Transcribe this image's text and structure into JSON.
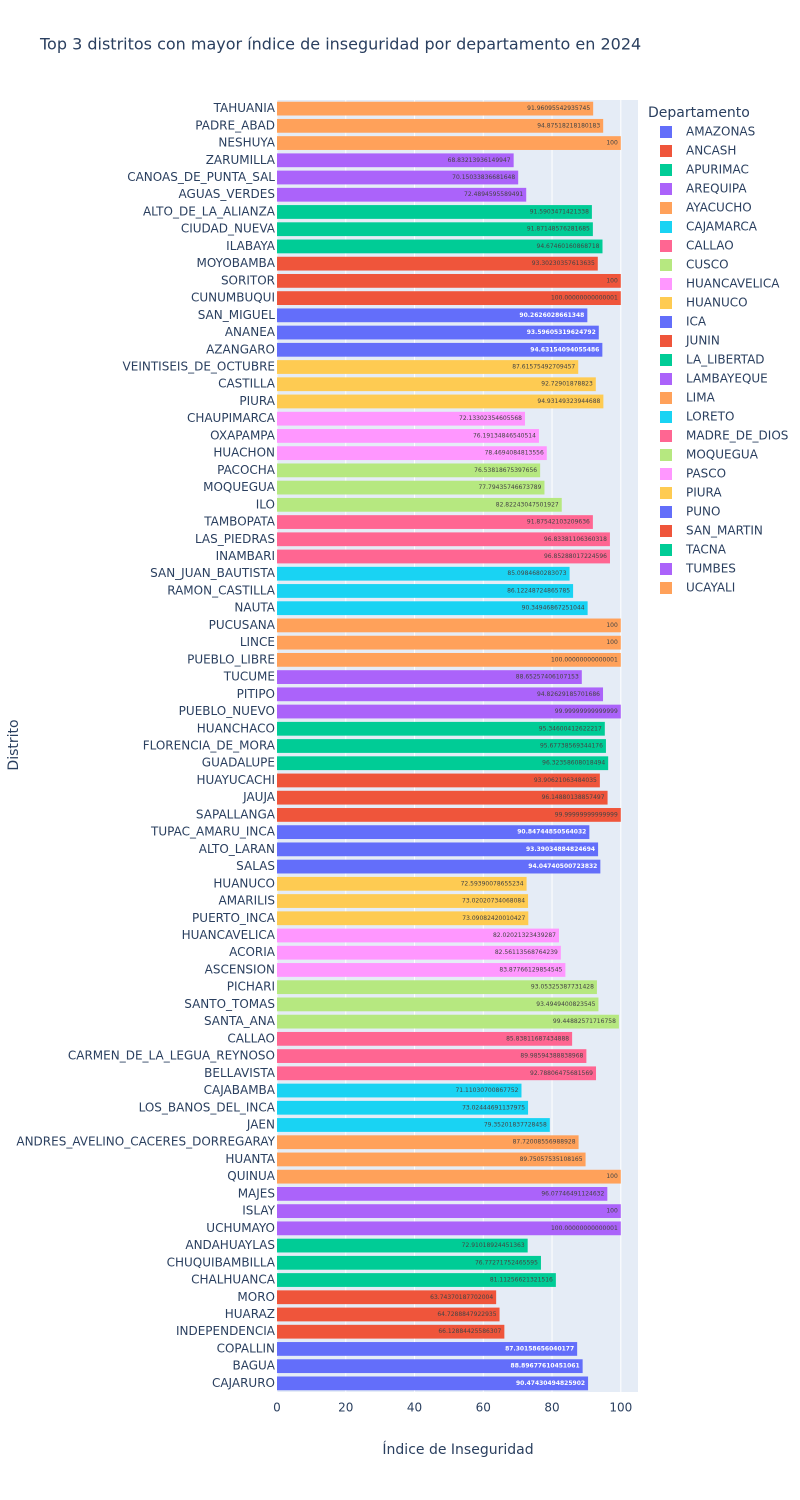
{
  "chart_data": {
    "type": "bar",
    "orientation": "horizontal",
    "title": "Top 3 distritos con mayor índice de inseguridad por departamento en 2024",
    "x_label": "Índice de Inseguridad",
    "y_label": "Distrito",
    "legend_title": "Departamento",
    "legend_position": "right",
    "grid": true,
    "xlim": [
      0,
      105
    ],
    "xticks": [
      0,
      20,
      40,
      60,
      80,
      100
    ],
    "series": [
      {
        "name": "AMAZONAS",
        "color": "#636EFA",
        "categories": [
          "COPALLIN",
          "BAGUA",
          "CAJARURO"
        ],
        "values": [
          87.30158656040177,
          88.89677610451061,
          90.47430494825902
        ]
      },
      {
        "name": "ANCASH",
        "color": "#EF553B",
        "categories": [
          "MORO",
          "HUARAZ",
          "INDEPENDENCIA"
        ],
        "values": [
          63.74370187702004,
          64.7288847922935,
          66.12884425586307
        ]
      },
      {
        "name": "APURIMAC",
        "color": "#00CC96",
        "categories": [
          "ANDAHUAYLAS",
          "CHUQUIBAMBILLA",
          "CHALHUANCA"
        ],
        "values": [
          72.91018924451363,
          76.77271752465595,
          81.11256621321516
        ]
      },
      {
        "name": "AREQUIPA",
        "color": "#AB63FA",
        "categories": [
          "MAJES",
          "ISLAY",
          "UCHUMAYO"
        ],
        "values": [
          96.07746491124632,
          100,
          100.00000000000001
        ]
      },
      {
        "name": "AYACUCHO",
        "color": "#FFA15A",
        "categories": [
          "ANDRES_AVELINO_CACERES_DORREGARAY",
          "HUANTA",
          "QUINUA"
        ],
        "values": [
          87.72008556988928,
          89.75057535108165,
          100
        ]
      },
      {
        "name": "CAJAMARCA",
        "color": "#19D3F3",
        "categories": [
          "CAJABAMBA",
          "LOS_BANOS_DEL_INCA",
          "JAEN"
        ],
        "values": [
          71.11030700867752,
          73.02444691137975,
          79.35201837728458
        ]
      },
      {
        "name": "CALLAO",
        "color": "#FF6692",
        "categories": [
          "CALLAO",
          "CARMEN_DE_LA_LEGUA_REYNOSO",
          "BELLAVISTA"
        ],
        "values": [
          85.83811687434888,
          89.98594388838968,
          92.78806475681569
        ]
      },
      {
        "name": "CUSCO",
        "color": "#B6E880",
        "categories": [
          "PICHARI",
          "SANTO_TOMAS",
          "SANTA_ANA"
        ],
        "values": [
          93.05325387731428,
          93.4949400823545,
          99.44882571716758
        ]
      },
      {
        "name": "HUANCAVELICA",
        "color": "#FF97FF",
        "categories": [
          "HUANCAVELICA",
          "ACORIA",
          "ASCENSION"
        ],
        "values": [
          82.02021323439287,
          82.56113568764239,
          83.87766129854545
        ]
      },
      {
        "name": "HUANUCO",
        "color": "#FECB52",
        "categories": [
          "HUANUCO",
          "AMARILIS",
          "PUERTO_INCA"
        ],
        "values": [
          72.59390078655234,
          73.02020734068084,
          73.09082420010427
        ]
      },
      {
        "name": "ICA",
        "color": "#636EFA",
        "categories": [
          "TUPAC_AMARU_INCA",
          "ALTO_LARAN",
          "SALAS"
        ],
        "values": [
          90.84744850564032,
          93.39034884824694,
          94.04740500723832
        ]
      },
      {
        "name": "JUNIN",
        "color": "#EF553B",
        "categories": [
          "HUAYUCACHI",
          "JAUJA",
          "SAPALLANGA"
        ],
        "values": [
          93.90621063484035,
          96.14880138857497,
          99.99999999999999
        ]
      },
      {
        "name": "LA_LIBERTAD",
        "color": "#00CC96",
        "categories": [
          "HUANCHACO",
          "FLORENCIA_DE_MORA",
          "GUADALUPE"
        ],
        "values": [
          95.34600412622217,
          95.67738569344176,
          96.32358608018494
        ]
      },
      {
        "name": "LAMBAYEQUE",
        "color": "#AB63FA",
        "categories": [
          "TUCUME",
          "PITIPO",
          "PUEBLO_NUEVO"
        ],
        "values": [
          88.65257406107153,
          94.82629185701686,
          99.99999999999999
        ]
      },
      {
        "name": "LIMA",
        "color": "#FFA15A",
        "categories": [
          "PUCUSANA",
          "LINCE",
          "PUEBLO_LIBRE"
        ],
        "values": [
          100,
          100,
          100.00000000000001
        ]
      },
      {
        "name": "LORETO",
        "color": "#19D3F3",
        "categories": [
          "SAN_JUAN_BAUTISTA",
          "RAMON_CASTILLA",
          "NAUTA"
        ],
        "values": [
          85.0984680283073,
          86.12248724865785,
          90.34946867251044
        ]
      },
      {
        "name": "MADRE_DE_DIOS",
        "color": "#FF6692",
        "categories": [
          "TAMBOPATA",
          "LAS_PIEDRAS",
          "INAMBARI"
        ],
        "values": [
          91.87542103209636,
          96.83381106360318,
          96.85288017224596
        ]
      },
      {
        "name": "MOQUEGUA",
        "color": "#B6E880",
        "categories": [
          "PACOCHA",
          "MOQUEGUA",
          "ILO"
        ],
        "values": [
          76.53818675397656,
          77.79435746673789,
          82.82243047501927
        ]
      },
      {
        "name": "PASCO",
        "color": "#FF97FF",
        "categories": [
          "CHAUPIMARCA",
          "OXAPAMPA",
          "HUACHON"
        ],
        "values": [
          72.13302354605568,
          76.19134846540514,
          78.4694084813556
        ]
      },
      {
        "name": "PIURA",
        "color": "#FECB52",
        "categories": [
          "VEINTISEIS_DE_OCTUBRE",
          "CASTILLA",
          "PIURA"
        ],
        "values": [
          87.61575492709457,
          92.72901878823,
          94.93149323944688
        ]
      },
      {
        "name": "PUNO",
        "color": "#636EFA",
        "categories": [
          "SAN_MIGUEL",
          "ANANEA",
          "AZANGARO"
        ],
        "values": [
          90.2626028661348,
          93.59605319624792,
          94.63154094055486
        ]
      },
      {
        "name": "SAN_MARTIN",
        "color": "#EF553B",
        "categories": [
          "MOYOBAMBA",
          "SORITOR",
          "CUNUMBUQUI"
        ],
        "values": [
          93.30230357613635,
          100,
          100.00000000000001
        ]
      },
      {
        "name": "TACNA",
        "color": "#00CC96",
        "categories": [
          "ALTO_DE_LA_ALIANZA",
          "CIUDAD_NUEVA",
          "ILABAYA"
        ],
        "values": [
          91.5903471421338,
          91.87148576281685,
          94.67460160868718
        ]
      },
      {
        "name": "TUMBES",
        "color": "#AB63FA",
        "categories": [
          "ZARUMILLA",
          "CANOAS_DE_PUNTA_SAL",
          "AGUAS_VERDES"
        ],
        "values": [
          68.83213936149947,
          70.15033836681648,
          72.4894595589491
        ]
      },
      {
        "name": "UCAYALI",
        "color": "#FFA15A",
        "categories": [
          "TAHUANIA",
          "PADRE_ABAD",
          "NESHUYA"
        ],
        "values": [
          91.96095542935745,
          94.87518218180183,
          100
        ]
      }
    ]
  }
}
